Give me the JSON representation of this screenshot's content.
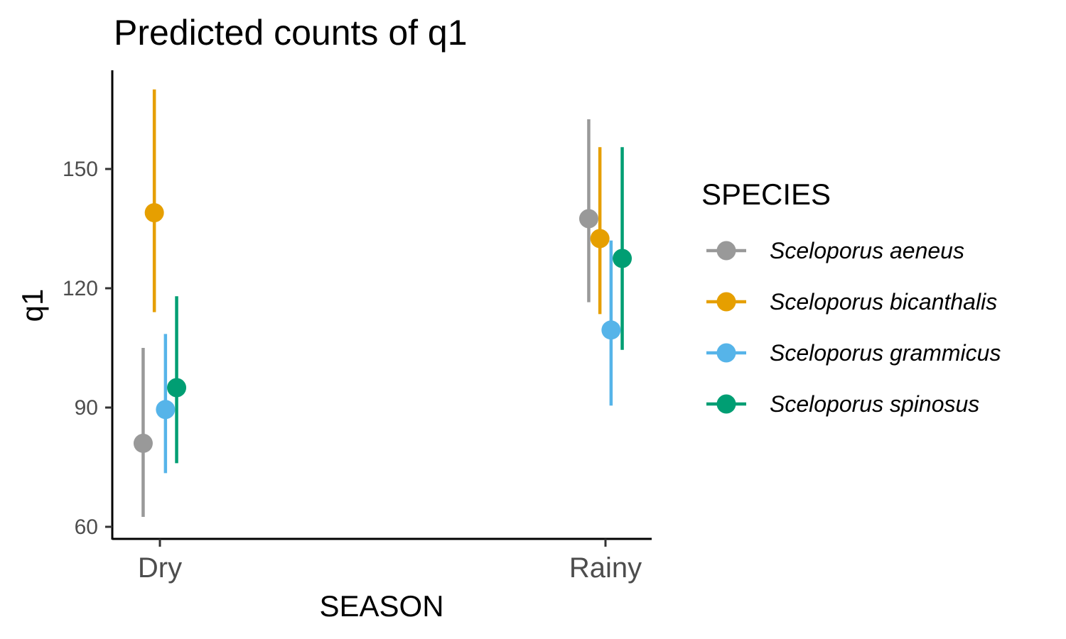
{
  "chart_data": {
    "type": "scatter",
    "title": "Predicted counts of q1",
    "xlabel": "SEASON",
    "ylabel": "q1",
    "categories": [
      "Dry",
      "Rainy"
    ],
    "ylim": [
      57,
      176
    ],
    "yticks": [
      60,
      90,
      120,
      150
    ],
    "grid": false,
    "legend": {
      "title": "SPECIES",
      "position": "right"
    },
    "series": [
      {
        "name": "Sceloporus aeneus",
        "color": "#999999",
        "values": [
          81,
          137.5
        ],
        "lower": [
          62.5,
          116.5
        ],
        "upper": [
          105,
          162.5
        ]
      },
      {
        "name": "Sceloporus bicanthalis",
        "color": "#E69F00",
        "values": [
          139,
          132.5
        ],
        "lower": [
          114,
          113.5
        ],
        "upper": [
          170,
          155.5
        ]
      },
      {
        "name": "Sceloporus grammicus",
        "color": "#56B4E9",
        "values": [
          89.5,
          109.5
        ],
        "lower": [
          73.5,
          90.5
        ],
        "upper": [
          108.5,
          132
        ]
      },
      {
        "name": "Sceloporus spinosus",
        "color": "#009E73",
        "values": [
          95,
          127.5
        ],
        "lower": [
          76,
          104.5
        ],
        "upper": [
          118,
          155.5
        ]
      }
    ]
  }
}
